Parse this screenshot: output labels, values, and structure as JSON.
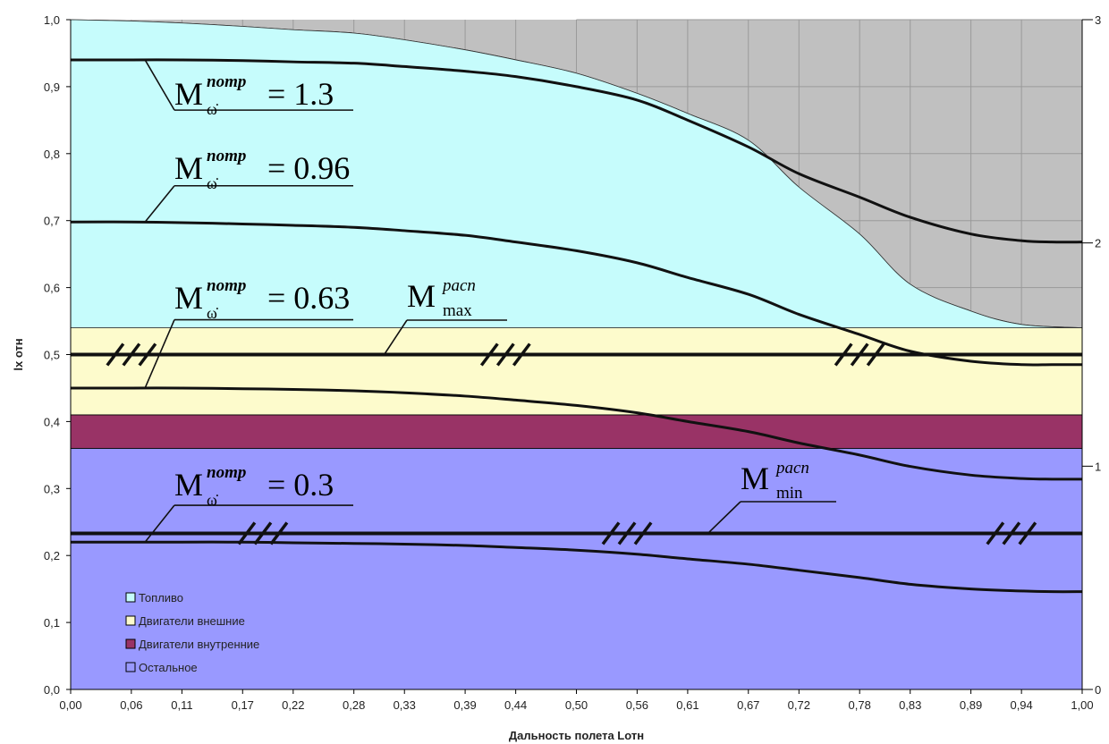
{
  "chart_data": {
    "type": "area",
    "xlabel": "Дальность полета Lотн",
    "ylabel": "lx отн",
    "x_ticks": [
      "0,00",
      "0,06",
      "0,11",
      "0,17",
      "0,22",
      "0,28",
      "0,33",
      "0,39",
      "0,44",
      "0,50",
      "0,56",
      "0,61",
      "0,67",
      "0,72",
      "0,78",
      "0,83",
      "0,89",
      "0,94",
      "1,00"
    ],
    "y_ticks": [
      "0,0",
      "0,1",
      "0,2",
      "0,3",
      "0,4",
      "0,5",
      "0,6",
      "0,7",
      "0,8",
      "0,9",
      "1,0"
    ],
    "y2_ticks": [
      "0",
      "1",
      "2",
      "3"
    ],
    "xlim": [
      0,
      1
    ],
    "ylim": [
      0,
      1
    ],
    "y2lim": [
      0,
      3
    ],
    "grid": true,
    "legend_position": "bottom-left",
    "colors": {
      "fuel": "#c6fcfc",
      "engines_external": "#fdfbcc",
      "engines_internal": "#993366",
      "other": "#9999ff",
      "background": "#c0c0c0"
    },
    "stacked_regions": [
      {
        "name": "Остальное",
        "color": "#9999ff",
        "lower": 0.0,
        "upper": 0.36
      },
      {
        "name": "Двигатели внутренние",
        "color": "#993366",
        "lower": 0.36,
        "upper": 0.41
      },
      {
        "name": "Двигатели внешние",
        "color": "#fdfbcc",
        "lower": 0.41,
        "upper": 0.54
      },
      {
        "name": "Топливо",
        "color": "#c6fcfc",
        "lower": 0.54,
        "upper": {
          "x": [
            0.0,
            0.06,
            0.11,
            0.17,
            0.22,
            0.28,
            0.33,
            0.39,
            0.44,
            0.5,
            0.56,
            0.61,
            0.67,
            0.72,
            0.78,
            0.83,
            0.89,
            0.94,
            1.0
          ],
          "y": [
            1.0,
            0.998,
            0.995,
            0.99,
            0.985,
            0.98,
            0.97,
            0.955,
            0.94,
            0.92,
            0.89,
            0.86,
            0.82,
            0.75,
            0.68,
            0.605,
            0.565,
            0.545,
            0.54
          ]
        }
      }
    ],
    "curves": [
      {
        "label_value": "= 1.3",
        "x": [
          0.0,
          0.06,
          0.11,
          0.17,
          0.22,
          0.28,
          0.33,
          0.39,
          0.44,
          0.5,
          0.56,
          0.61,
          0.67,
          0.72,
          0.78,
          0.83,
          0.89,
          0.94,
          0.97,
          1.0
        ],
        "y": [
          0.94,
          0.94,
          0.94,
          0.939,
          0.937,
          0.935,
          0.93,
          0.923,
          0.915,
          0.9,
          0.88,
          0.85,
          0.81,
          0.77,
          0.735,
          0.705,
          0.68,
          0.67,
          0.668,
          0.668
        ]
      },
      {
        "label_value": "= 0.96",
        "x": [
          0.0,
          0.06,
          0.11,
          0.17,
          0.22,
          0.28,
          0.33,
          0.39,
          0.44,
          0.5,
          0.56,
          0.61,
          0.67,
          0.72,
          0.78,
          0.83,
          0.89,
          0.94,
          0.97,
          1.0
        ],
        "y": [
          0.698,
          0.698,
          0.697,
          0.695,
          0.693,
          0.69,
          0.685,
          0.678,
          0.668,
          0.655,
          0.637,
          0.615,
          0.59,
          0.56,
          0.53,
          0.505,
          0.49,
          0.485,
          0.485,
          0.485
        ]
      },
      {
        "label_value": "= 0.63",
        "x": [
          0.0,
          0.06,
          0.11,
          0.17,
          0.22,
          0.28,
          0.33,
          0.39,
          0.44,
          0.5,
          0.56,
          0.61,
          0.67,
          0.72,
          0.78,
          0.83,
          0.89,
          0.94,
          0.97,
          1.0
        ],
        "y": [
          0.45,
          0.45,
          0.45,
          0.449,
          0.448,
          0.446,
          0.443,
          0.438,
          0.432,
          0.424,
          0.413,
          0.4,
          0.385,
          0.368,
          0.35,
          0.333,
          0.32,
          0.315,
          0.314,
          0.314
        ]
      },
      {
        "label_value": "= 0.3",
        "x": [
          0.0,
          0.06,
          0.11,
          0.17,
          0.22,
          0.28,
          0.33,
          0.39,
          0.44,
          0.5,
          0.56,
          0.61,
          0.67,
          0.72,
          0.78,
          0.83,
          0.89,
          0.94,
          0.97,
          1.0
        ],
        "y": [
          0.22,
          0.22,
          0.22,
          0.22,
          0.219,
          0.218,
          0.217,
          0.215,
          0.212,
          0.208,
          0.202,
          0.195,
          0.187,
          0.178,
          0.167,
          0.157,
          0.15,
          0.147,
          0.146,
          0.146
        ]
      }
    ],
    "limit_lines": [
      {
        "label_sup": "расп",
        "label_sub": "max",
        "y": 0.5
      },
      {
        "label_sup": "расп",
        "label_sub": "min",
        "y": 0.233
      }
    ],
    "hatch_marks": [
      {
        "y": 0.5,
        "x": [
          0.06,
          0.43,
          0.78
        ]
      },
      {
        "y": 0.233,
        "x": [
          0.19,
          0.55,
          0.93
        ]
      }
    ],
    "annotations": {
      "curve_symbol": "M",
      "curve_sup": "потр",
      "curve_sub": "ω̇",
      "limit_symbol": "M"
    },
    "legend": [
      "Топливо",
      "Двигатели внешние",
      "Двигатели внутренние",
      "Остальное"
    ]
  }
}
